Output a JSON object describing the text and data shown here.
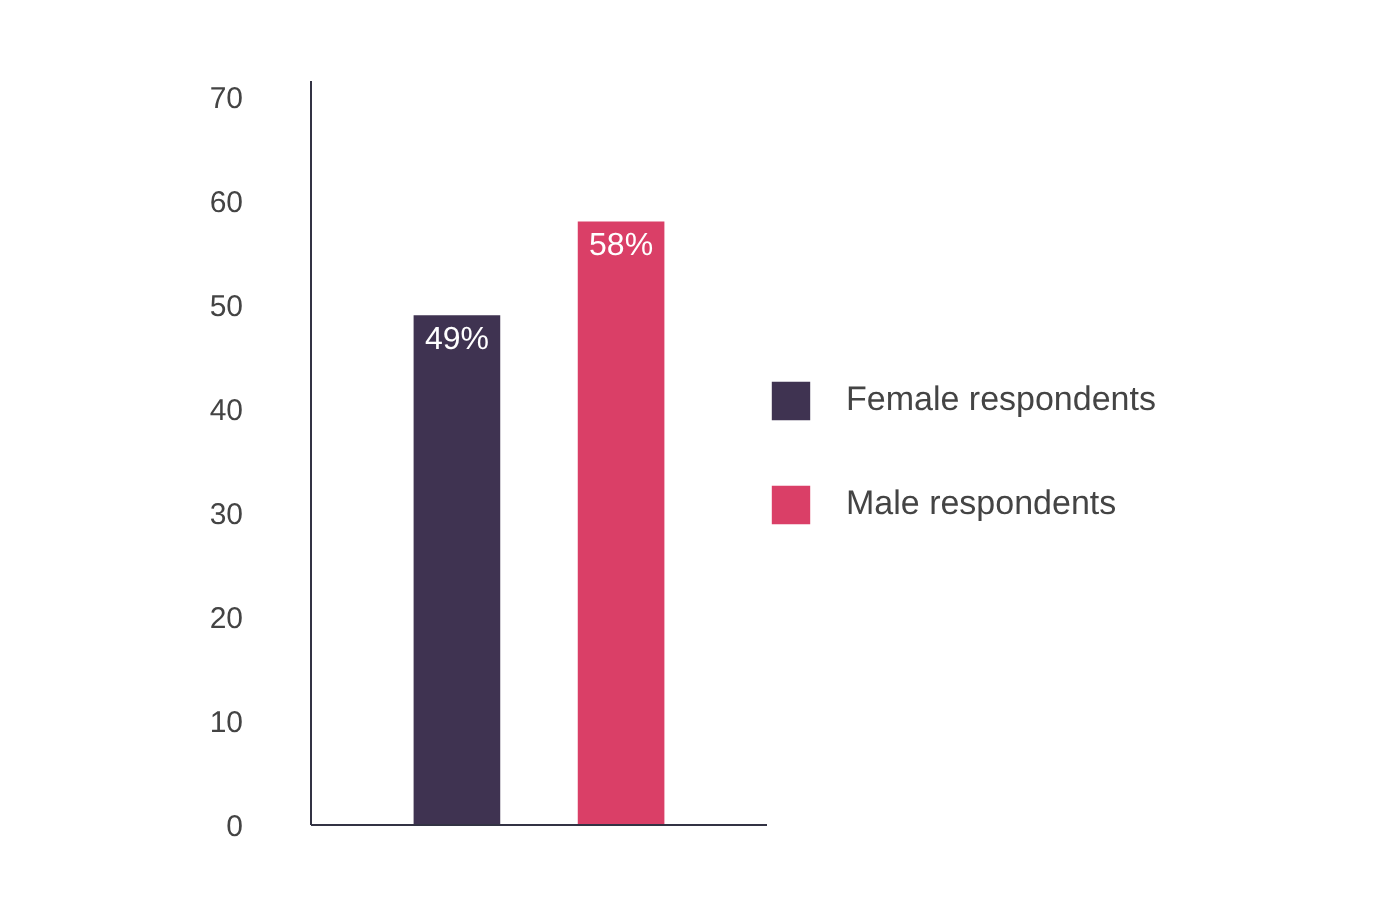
{
  "chart_data": {
    "type": "bar",
    "categories": [
      null
    ],
    "series": [
      {
        "name": "Female respondents",
        "color": "#3f3351",
        "values": [
          49
        ],
        "value_labels": [
          "49%"
        ]
      },
      {
        "name": "Male respondents",
        "color": "#da3f67",
        "values": [
          58
        ],
        "value_labels": [
          "58%"
        ]
      }
    ],
    "ylim": [
      0,
      71.5
    ],
    "yticks": [
      0,
      10,
      20,
      30,
      40,
      50,
      60,
      70
    ],
    "legend": "right"
  }
}
